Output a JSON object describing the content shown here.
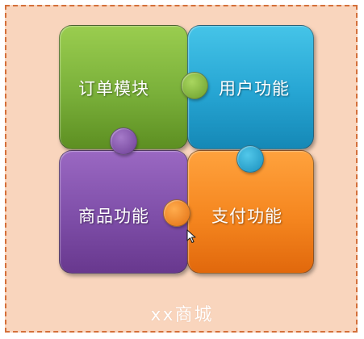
{
  "diagram": {
    "tiles": [
      {
        "id": "orders",
        "label": "订单模块",
        "color_top": "#9acd4f",
        "color_bottom": "#5d8f22"
      },
      {
        "id": "users",
        "label": "用户功能",
        "color_top": "#45c4e8",
        "color_bottom": "#1588b6"
      },
      {
        "id": "products",
        "label": "商品功能",
        "color_top": "#9a68c2",
        "color_bottom": "#68388e"
      },
      {
        "id": "payment",
        "label": "支付功能",
        "color_top": "#ffa23d",
        "color_bottom": "#e1680c"
      }
    ],
    "footer_label": "xx商城",
    "frame_colors": {
      "fill": "#f9d5bd",
      "border": "#d4703a"
    }
  }
}
